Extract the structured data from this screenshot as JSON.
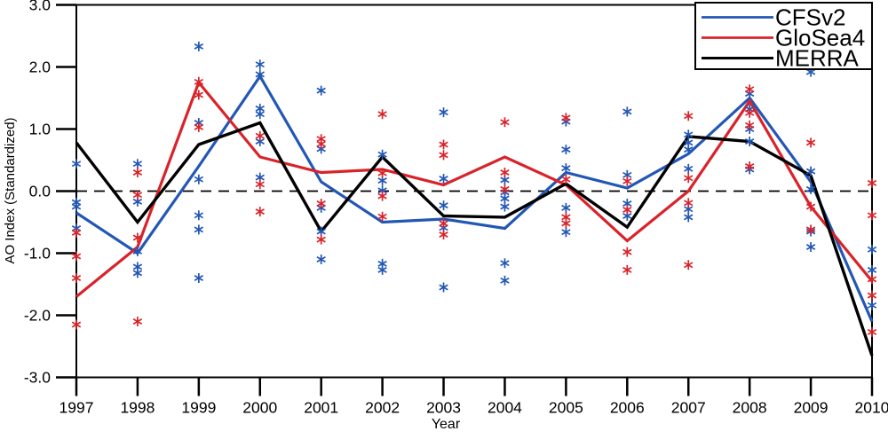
{
  "chart_data": {
    "type": "line",
    "title": "",
    "xlabel": "Year",
    "ylabel": "AO Index (Standardized)",
    "xlim": [
      1997,
      2010
    ],
    "ylim": [
      -3,
      3
    ],
    "grid": false,
    "zero_line": {
      "value": 0.0,
      "style": "dashed",
      "color": "#000000"
    },
    "legend": {
      "position": "top-right",
      "border": true
    },
    "x": [
      1997,
      1998,
      1999,
      2000,
      2001,
      2002,
      2003,
      2004,
      2005,
      2006,
      2007,
      2008,
      2009,
      2010
    ],
    "yticks": [
      {
        "v": 3,
        "label": "3.0"
      },
      {
        "v": 2,
        "label": "2.0"
      },
      {
        "v": 1,
        "label": "1.0"
      },
      {
        "v": 0,
        "label": "0.0"
      },
      {
        "v": -1,
        "label": "-1.0"
      },
      {
        "v": -2,
        "label": "-2.0"
      },
      {
        "v": -3,
        "label": "-3.0"
      }
    ],
    "series": [
      {
        "name": "CFSv2",
        "color": "#2257b5",
        "values": [
          -0.35,
          -1.0,
          0.4,
          1.85,
          0.15,
          -0.5,
          -0.45,
          -0.6,
          0.3,
          0.05,
          0.6,
          1.5,
          0.15,
          -2.1
        ]
      },
      {
        "name": "GloSea4",
        "color": "#d9232a",
        "values": [
          -1.7,
          -0.9,
          1.75,
          0.55,
          0.3,
          0.35,
          0.1,
          0.55,
          0.1,
          -0.8,
          0.0,
          1.45,
          -0.25,
          -1.45
        ]
      },
      {
        "name": "MERRA",
        "color": "#000000",
        "values": [
          0.78,
          -0.5,
          0.75,
          1.1,
          -0.65,
          0.55,
          -0.4,
          -0.42,
          0.12,
          -0.58,
          0.88,
          0.8,
          0.25,
          -2.65
        ]
      }
    ],
    "ensemble_markers": [
      {
        "name": "CFSv2 ensemble members",
        "color": "#2257b5",
        "marker": "asterisk",
        "points_by_year": {
          "1997": [
            0.44,
            -0.18,
            -0.25,
            -0.6
          ],
          "1998": [
            0.44,
            -0.17,
            -0.97,
            -1.22,
            -1.32
          ],
          "1999": [
            2.33,
            1.1,
            0.19,
            -0.39,
            -0.62,
            -1.4
          ],
          "2000": [
            2.04,
            1.88,
            1.33,
            1.24,
            0.8,
            0.22
          ],
          "2001": [
            1.62,
            0.68,
            -0.27,
            -0.65,
            -1.1
          ],
          "2002": [
            0.59,
            0.17,
            0.01,
            -1.17,
            -1.27
          ],
          "2003": [
            1.27,
            0.2,
            -0.23,
            -0.59,
            -1.55
          ],
          "2004": [
            0.18,
            -0.02,
            -0.12,
            -0.25,
            -1.16,
            -1.44
          ],
          "2005": [
            1.12,
            0.67,
            0.37,
            -0.27,
            -0.66
          ],
          "2006": [
            1.28,
            0.26,
            -0.2,
            -0.4
          ],
          "2007": [
            0.91,
            0.78,
            0.67,
            0.36,
            -0.29,
            -0.42
          ],
          "2008": [
            1.57,
            1.32,
            1.0,
            0.8,
            0.35
          ],
          "2009": [
            1.92,
            0.32,
            0.03,
            -0.65,
            -0.9
          ],
          "2010": [
            -0.94,
            -1.27,
            -1.84
          ]
        }
      },
      {
        "name": "GloSea4 ensemble members",
        "color": "#d9232a",
        "marker": "asterisk",
        "points_by_year": {
          "1997": [
            -0.67,
            -1.05,
            -1.4,
            -2.15
          ],
          "1998": [
            0.3,
            -0.06,
            -0.75,
            -2.1
          ],
          "1999": [
            1.76,
            1.55,
            1.03
          ],
          "2000": [
            0.89,
            0.11,
            -0.33
          ],
          "2001": [
            0.84,
            0.76,
            -0.2,
            -0.78
          ],
          "2002": [
            1.24,
            0.29,
            -0.08,
            -0.41
          ],
          "2003": [
            0.75,
            0.58,
            -0.52,
            -0.7
          ],
          "2004": [
            1.11,
            0.3,
            0.03
          ],
          "2005": [
            1.18,
            0.19,
            -0.42,
            -0.52
          ],
          "2006": [
            0.16,
            -0.3,
            -0.98,
            -1.27
          ],
          "2007": [
            1.21,
            0.21,
            -0.19,
            -1.19
          ],
          "2008": [
            1.64,
            1.26,
            1.06,
            0.4
          ],
          "2009": [
            0.78,
            -0.25,
            -0.62
          ],
          "2010": [
            0.13,
            -0.39,
            -1.42,
            -1.68,
            -2.27
          ]
        }
      }
    ]
  }
}
